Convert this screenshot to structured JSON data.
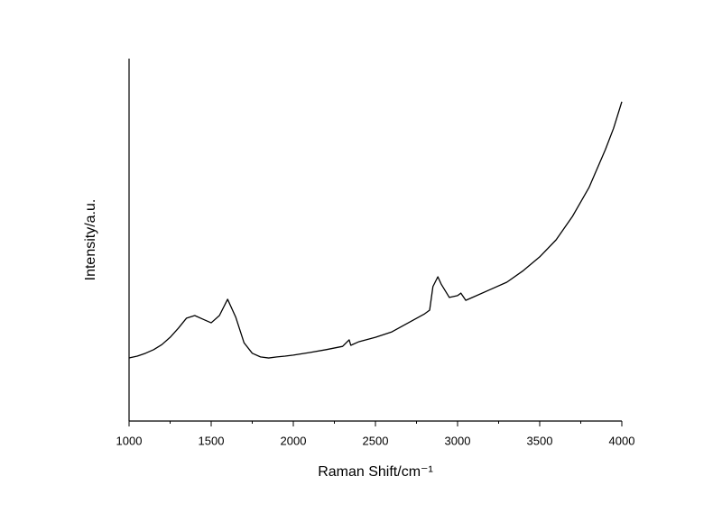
{
  "chart_data": {
    "type": "line",
    "x_label": "Raman Shift/cm⁻¹",
    "y_label": "Intensity/a.u.",
    "x": [
      1000,
      1050,
      1100,
      1150,
      1200,
      1250,
      1300,
      1350,
      1400,
      1450,
      1500,
      1550,
      1600,
      1650,
      1700,
      1750,
      1800,
      1850,
      1900,
      1950,
      2000,
      2100,
      2200,
      2300,
      2340,
      2350,
      2400,
      2500,
      2600,
      2700,
      2800,
      2830,
      2850,
      2880,
      2900,
      2950,
      3000,
      3020,
      3050,
      3100,
      3200,
      3300,
      3400,
      3500,
      3600,
      3700,
      3800,
      3900,
      3950,
      4000
    ],
    "series": [
      {
        "color": "#000000",
        "values": [
          17.4,
          17.9,
          18.7,
          19.7,
          21.1,
          23.1,
          25.6,
          28.4,
          29.1,
          28.1,
          27.1,
          29.1,
          33.6,
          28.6,
          21.6,
          18.7,
          17.7,
          17.4,
          17.7,
          17.9,
          18.2,
          18.9,
          19.7,
          20.6,
          22.4,
          20.9,
          21.9,
          23.1,
          24.6,
          27.1,
          29.6,
          30.6,
          37.1,
          39.8,
          37.8,
          34.1,
          34.6,
          35.3,
          33.3,
          34.3,
          36.3,
          38.3,
          41.5,
          45.3,
          50.0,
          56.5,
          64.4,
          74.9,
          80.8,
          88.1
        ]
      }
    ],
    "xlim": [
      1000,
      4000
    ],
    "xticks": [
      1000,
      1500,
      2000,
      2500,
      3000,
      3500,
      4000
    ],
    "xminorticks": [
      1250,
      1750,
      2250,
      2750,
      3250,
      3750
    ],
    "ylim": [
      0,
      100
    ]
  }
}
